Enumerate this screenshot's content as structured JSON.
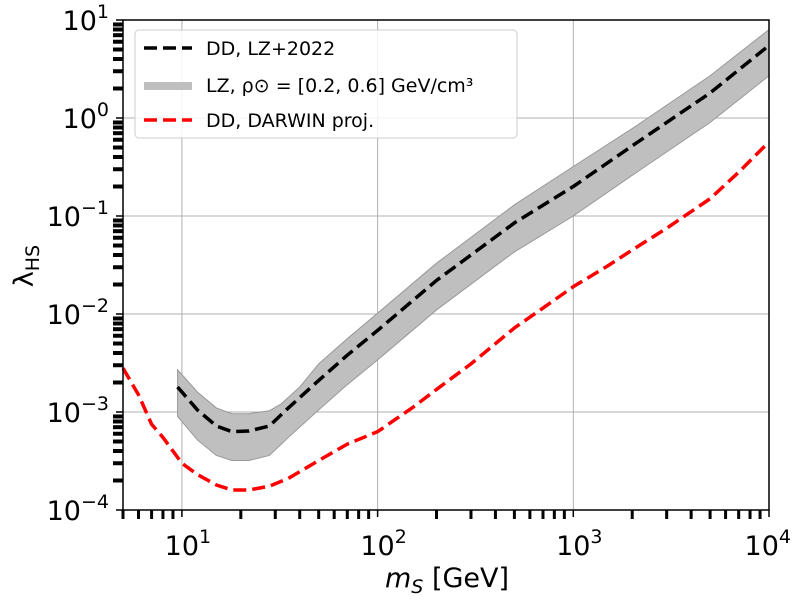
{
  "chart_data": {
    "type": "line",
    "title": "",
    "xlabel": "m_S [GeV]",
    "ylabel": "λ_HS",
    "xscale": "log",
    "yscale": "log",
    "xlim": [
      5,
      10000
    ],
    "ylim": [
      0.0001,
      10
    ],
    "grid": true,
    "legend_position": "top-left",
    "x_tick_labels": [
      {
        "value": 10,
        "base": "10",
        "exp": "1"
      },
      {
        "value": 100,
        "base": "10",
        "exp": "2"
      },
      {
        "value": 1000,
        "base": "10",
        "exp": "3"
      },
      {
        "value": 10000,
        "base": "10",
        "exp": "4"
      }
    ],
    "y_tick_labels": [
      {
        "value": 0.0001,
        "base": "10",
        "exp": "−4"
      },
      {
        "value": 0.001,
        "base": "10",
        "exp": "−3"
      },
      {
        "value": 0.01,
        "base": "10",
        "exp": "−2"
      },
      {
        "value": 0.1,
        "base": "10",
        "exp": "−1"
      },
      {
        "value": 1,
        "base": "10",
        "exp": "0"
      },
      {
        "value": 10,
        "base": "10",
        "exp": "1"
      }
    ],
    "legend": [
      {
        "label": "DD, LZ+2022",
        "color": "#000000",
        "style": "dashed"
      },
      {
        "label": "LZ, ρ⊙ = [0.2, 0.6] GeV/cm³",
        "color": "#bfbfbf",
        "style": "band"
      },
      {
        "label": "DD, DARWIN proj.",
        "color": "#ff0000",
        "style": "dashed"
      }
    ],
    "series": [
      {
        "name": "DD, LZ+2022",
        "style": "dashed",
        "color": "#000000",
        "points": [
          [
            9.5,
            0.0018
          ],
          [
            12,
            0.00105
          ],
          [
            15,
            0.00072
          ],
          [
            18,
            0.00063
          ],
          [
            22,
            0.00064
          ],
          [
            28,
            0.00072
          ],
          [
            35,
            0.0011
          ],
          [
            50,
            0.0021
          ],
          [
            70,
            0.0038
          ],
          [
            100,
            0.0068
          ],
          [
            200,
            0.022
          ],
          [
            500,
            0.085
          ],
          [
            1000,
            0.2
          ],
          [
            2000,
            0.52
          ],
          [
            5000,
            1.8
          ],
          [
            10000,
            5.5
          ]
        ]
      },
      {
        "name": "DD, DARWIN proj.",
        "style": "dashed",
        "color": "#ff0000",
        "points": [
          [
            5,
            0.0028
          ],
          [
            6,
            0.0015
          ],
          [
            7,
            0.00075
          ],
          [
            8,
            0.00055
          ],
          [
            10,
            0.0003
          ],
          [
            12,
            0.00023
          ],
          [
            15,
            0.00018
          ],
          [
            18,
            0.00016
          ],
          [
            22,
            0.00016
          ],
          [
            28,
            0.000175
          ],
          [
            35,
            0.00021
          ],
          [
            50,
            0.00032
          ],
          [
            70,
            0.00047
          ],
          [
            100,
            0.00063
          ],
          [
            150,
            0.0011
          ],
          [
            200,
            0.0017
          ],
          [
            300,
            0.0031
          ],
          [
            500,
            0.0072
          ],
          [
            700,
            0.0115
          ],
          [
            1000,
            0.019
          ],
          [
            1500,
            0.031
          ],
          [
            2000,
            0.045
          ],
          [
            3000,
            0.075
          ],
          [
            5000,
            0.15
          ],
          [
            7000,
            0.28
          ],
          [
            10000,
            0.57
          ]
        ]
      }
    ],
    "band": {
      "name": "LZ, ρ⊙ = [0.2, 0.6] GeV/cm³",
      "color": "#bfbfbf",
      "upper": [
        [
          9.5,
          0.0027
        ],
        [
          12,
          0.0016
        ],
        [
          15,
          0.0011
        ],
        [
          18,
          0.00096
        ],
        [
          22,
          0.00096
        ],
        [
          28,
          0.00103
        ],
        [
          32,
          0.0012
        ],
        [
          40,
          0.0018
        ],
        [
          50,
          0.0031
        ],
        [
          70,
          0.0056
        ],
        [
          100,
          0.0102
        ],
        [
          200,
          0.033
        ],
        [
          500,
          0.13
        ],
        [
          1000,
          0.32
        ],
        [
          2000,
          0.78
        ],
        [
          5000,
          2.7
        ],
        [
          10000,
          8.0
        ]
      ],
      "lower": [
        [
          9.5,
          0.0009
        ],
        [
          12,
          0.00052
        ],
        [
          15,
          0.00036
        ],
        [
          18,
          0.00032
        ],
        [
          22,
          0.00032
        ],
        [
          28,
          0.00036
        ],
        [
          35,
          0.00055
        ],
        [
          50,
          0.00105
        ],
        [
          70,
          0.0019
        ],
        [
          100,
          0.0034
        ],
        [
          200,
          0.011
        ],
        [
          500,
          0.043
        ],
        [
          1000,
          0.1
        ],
        [
          2000,
          0.26
        ],
        [
          5000,
          0.9
        ],
        [
          10000,
          2.7
        ]
      ]
    }
  }
}
